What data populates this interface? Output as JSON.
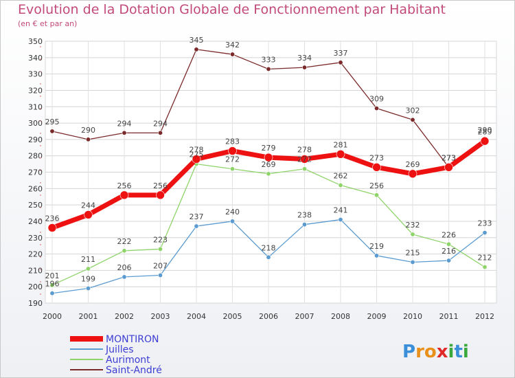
{
  "chart_data": {
    "type": "line",
    "title": "Evolution de la Dotation Globale de Fonctionnement par Habitant",
    "subtitle": "(en € et par an)",
    "categories": [
      "2000",
      "2001",
      "2002",
      "2003",
      "2004",
      "2005",
      "2006",
      "2007",
      "2008",
      "2009",
      "2010",
      "2011",
      "2012"
    ],
    "ylim": [
      190,
      350
    ],
    "yticks": [
      190,
      200,
      210,
      220,
      230,
      240,
      250,
      260,
      270,
      280,
      290,
      300,
      310,
      320,
      330,
      340,
      350
    ],
    "grid": true,
    "legend_position": "bottom-left",
    "series": [
      {
        "name": "Saint-André",
        "color": "#7a2a2a",
        "width": 1.3,
        "values": [
          295,
          290,
          294,
          294,
          345,
          342,
          333,
          334,
          337,
          309,
          302,
          273,
          290
        ]
      },
      {
        "name": "Aurimont",
        "color": "#8fd46a",
        "width": 1.3,
        "values": [
          201,
          211,
          222,
          223,
          275,
          272,
          269,
          272,
          262,
          256,
          232,
          226,
          212
        ]
      },
      {
        "name": "Juilles",
        "color": "#5b9bd0",
        "width": 1.3,
        "values": [
          196,
          199,
          206,
          207,
          237,
          240,
          218,
          238,
          241,
          219,
          215,
          216,
          233
        ]
      },
      {
        "name": "MONTIRON",
        "color": "#ee1111",
        "width": 7,
        "values": [
          236,
          244,
          256,
          256,
          278,
          283,
          279,
          278,
          281,
          273,
          269,
          273,
          289
        ]
      }
    ],
    "legend": [
      "MONTIRON",
      "Juilles",
      "Aurimont",
      "Saint-André"
    ]
  },
  "logo": {
    "text": "Proxiti",
    "letters": [
      "P",
      "r",
      "o",
      "x",
      "i",
      "t",
      "i"
    ]
  }
}
